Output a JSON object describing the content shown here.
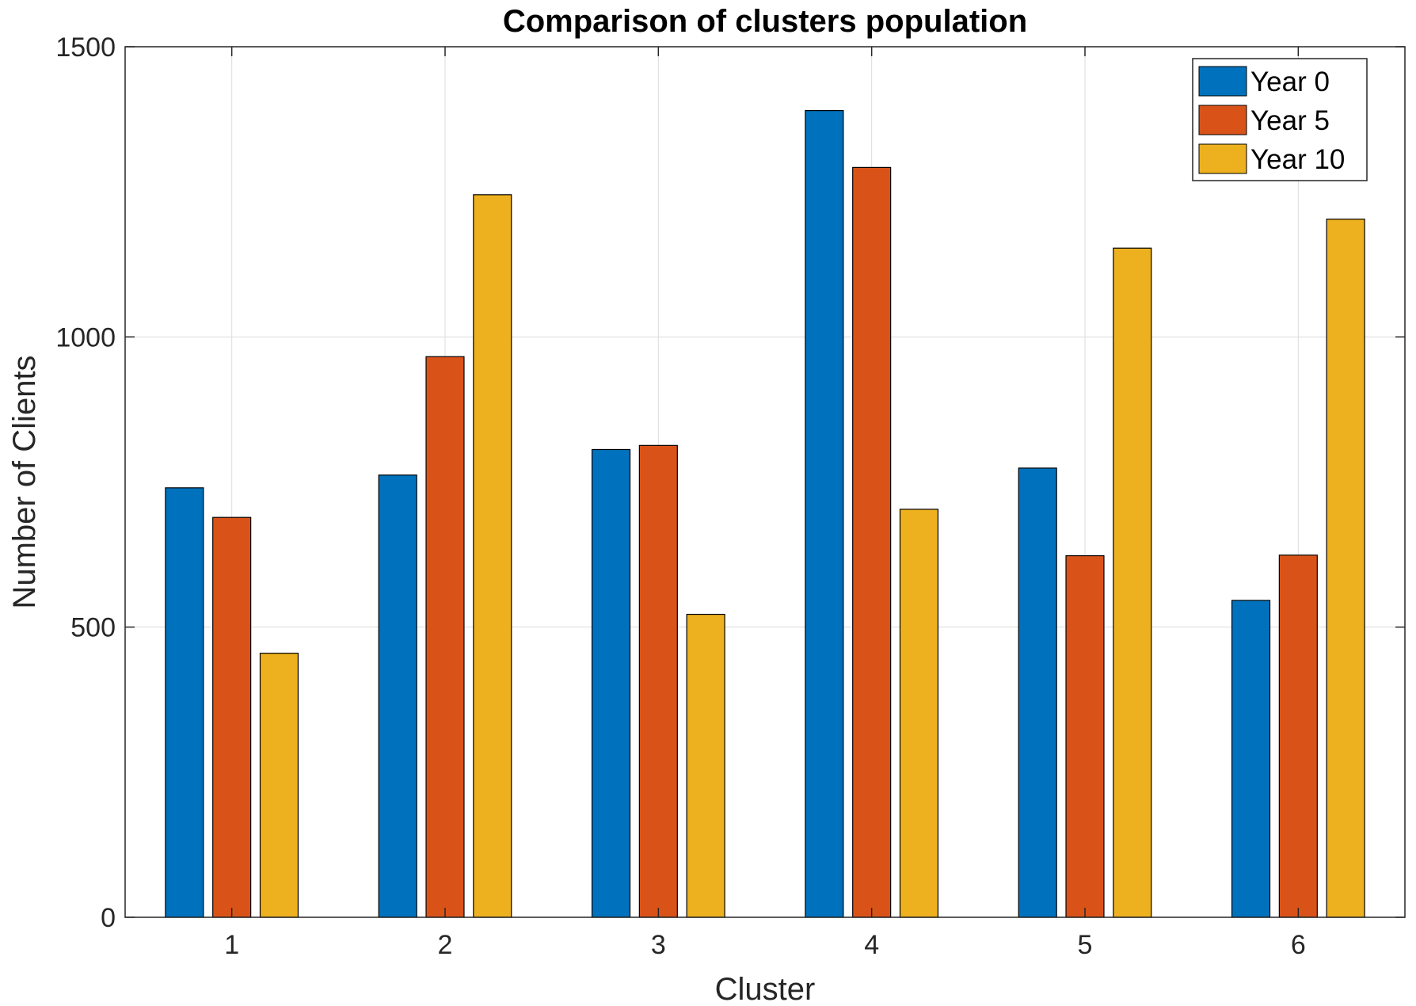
{
  "chart_data": {
    "type": "bar",
    "title": "Comparison of clusters population",
    "xlabel": "Cluster",
    "ylabel": "Number of Clients",
    "categories": [
      "1",
      "2",
      "3",
      "4",
      "5",
      "6"
    ],
    "series": [
      {
        "name": "Year 0",
        "color": "#0072BD",
        "values": [
          740,
          762,
          806,
          1390,
          774,
          546
        ]
      },
      {
        "name": "Year 5",
        "color": "#D95319",
        "values": [
          689,
          966,
          813,
          1292,
          623,
          624
        ]
      },
      {
        "name": "Year 10",
        "color": "#EDB120",
        "values": [
          455,
          1245,
          522,
          703,
          1153,
          1203
        ]
      }
    ],
    "ylim": [
      0,
      1500
    ],
    "yticks": [
      0,
      500,
      1000,
      1500
    ],
    "grid": true,
    "legend_position": "top-right"
  }
}
